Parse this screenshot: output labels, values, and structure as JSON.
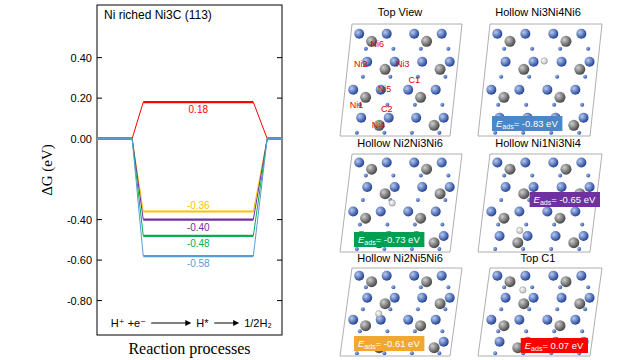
{
  "chart_data": {
    "type": "line",
    "title": "Ni riched Ni3C (113)",
    "x_label": "Reaction processes",
    "y_label": "ΔG (eV)",
    "categories": [
      "H⁺ +e⁻",
      "H*",
      "1/2H₂"
    ],
    "series": [
      {
        "color": "#ff0000",
        "values": [
          0,
          0.18,
          0
        ],
        "value_labels": [
          null,
          "0.18",
          null
        ]
      },
      {
        "color": "#ffc000",
        "values": [
          0,
          -0.36,
          0
        ],
        "value_labels": [
          null,
          "-0.36",
          null
        ]
      },
      {
        "color": "#7030a0",
        "values": [
          0,
          -0.4,
          0
        ],
        "value_labels": [
          null,
          "-0.40",
          null
        ]
      },
      {
        "color": "#00b050",
        "values": [
          0,
          -0.48,
          0
        ],
        "value_labels": [
          null,
          "-0.48",
          null
        ]
      },
      {
        "color": "#5b9bd5",
        "values": [
          0,
          -0.58,
          0
        ],
        "value_labels": [
          null,
          "-0.58",
          null
        ]
      }
    ],
    "ylim": [
      -0.97,
      0.66
    ],
    "yticks": [
      {
        "value": 0.4,
        "label": "0.40"
      },
      {
        "value": 0.2,
        "label": "0.20"
      },
      {
        "value": 0,
        "label": "0.00"
      },
      {
        "value": -0.4,
        "label": "-0.40"
      },
      {
        "value": -0.6,
        "label": "-0.60"
      },
      {
        "value": -0.8,
        "label": "-0.80"
      }
    ],
    "data_labels": true
  },
  "structures": [
    {
      "title": "Top View",
      "atom_labels": [
        "Ni6",
        "Ni2",
        "Ni3",
        "C1",
        "Ni5",
        "Ni1",
        "C2",
        "Ni4"
      ]
    },
    {
      "title": "Hollow Ni3Ni4Ni6",
      "eads_symbol": "E",
      "eads_subscript": "ads",
      "eads_value": "= -0.83 eV",
      "color": "#4a86c8"
    },
    {
      "title": "Hollow Ni2Ni3Ni6",
      "eads_symbol": "E",
      "eads_subscript": "ads",
      "eads_value": "= -0.73 eV",
      "color": "#00a050"
    },
    {
      "title": "Hollow Ni1Ni3Ni4",
      "eads_symbol": "E",
      "eads_subscript": "ads",
      "eads_value": "= -0.65 eV",
      "color": "#7030a0"
    },
    {
      "title": "Hollow Ni2Ni5Ni6",
      "eads_symbol": "E",
      "eads_subscript": "ads",
      "eads_value": "= -0.61 eV",
      "color": "#f0a830"
    },
    {
      "title": "Top C1",
      "eads_symbol": "E",
      "eads_subscript": "ads",
      "eads_value": "= 0.07 eV",
      "color": "#ff0000"
    }
  ]
}
